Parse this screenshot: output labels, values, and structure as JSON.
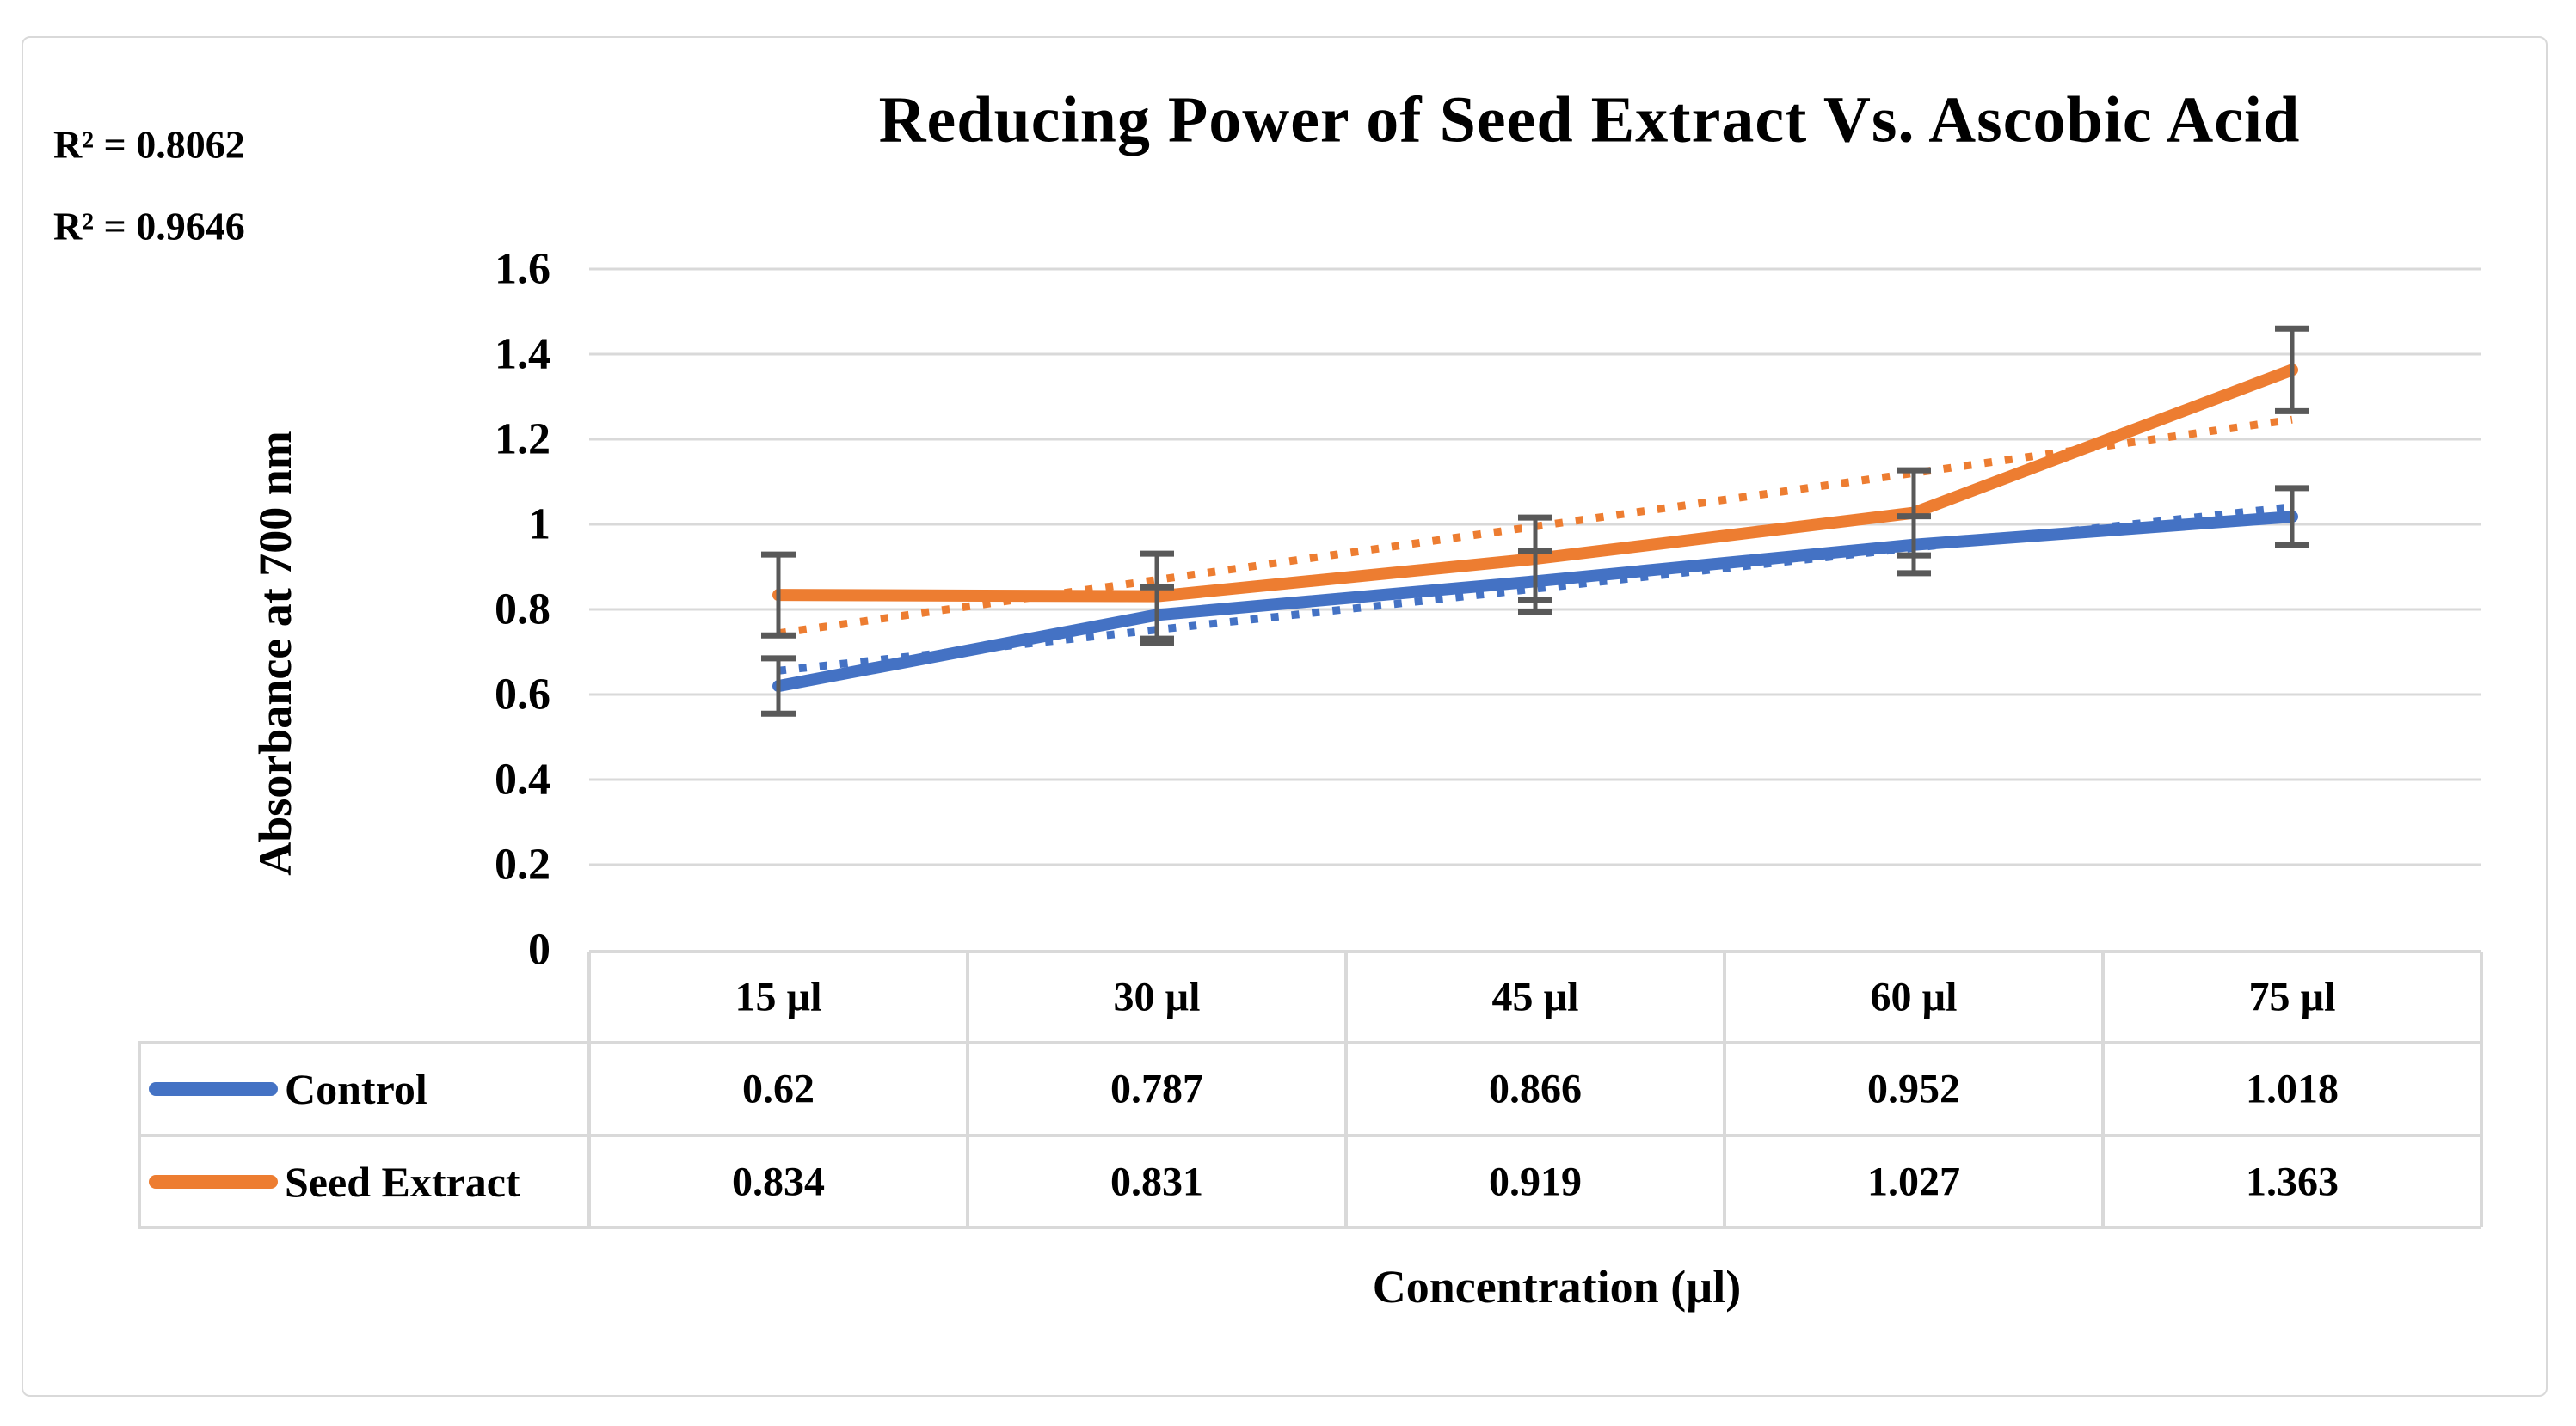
{
  "chart_data": {
    "type": "line",
    "title": "Reducing Power of Seed Extract Vs. Ascobic Acid",
    "xlabel": "Concentration (µl)",
    "ylabel": "Absorbance at 700 nm",
    "categories": [
      "15 µl",
      "30 µl",
      "45 µl",
      "60 µl",
      "75 µl"
    ],
    "y_ticks": [
      "0",
      "0.2",
      "0.4",
      "0.6",
      "0.8",
      "1",
      "1.2",
      "1.4",
      "1.6"
    ],
    "ylim": [
      0,
      1.6
    ],
    "grid": "horizontal",
    "legend_position": "data-table-left",
    "annotations": [
      {
        "text": "R² = 0.8062",
        "refers_to": "Seed Extract trendline"
      },
      {
        "text": "R² = 0.9646",
        "refers_to": "Control trendline"
      }
    ],
    "series": [
      {
        "name": "Control",
        "color": "#4472C4",
        "values": [
          0.62,
          0.787,
          0.866,
          0.952,
          1.018
        ],
        "error_bars": [
          0.065,
          0.065,
          0.072,
          0.067,
          0.067
        ],
        "trendline": {
          "style": "dotted",
          "start": 0.656,
          "end": 1.041,
          "r_squared": 0.9646
        }
      },
      {
        "name": "Seed Extract",
        "color": "#ED7D31",
        "values": [
          0.834,
          0.831,
          0.919,
          1.027,
          1.363
        ],
        "error_bars": [
          0.095,
          0.1,
          0.097,
          0.1,
          0.097
        ],
        "trendline": {
          "style": "dotted",
          "start": 0.744,
          "end": 1.246,
          "r_squared": 0.8062
        }
      }
    ],
    "error_bar_color": "#595959",
    "gridline_color": "#D9D9D9",
    "border_color": "#D9D9D9",
    "text_color": "#000000"
  }
}
